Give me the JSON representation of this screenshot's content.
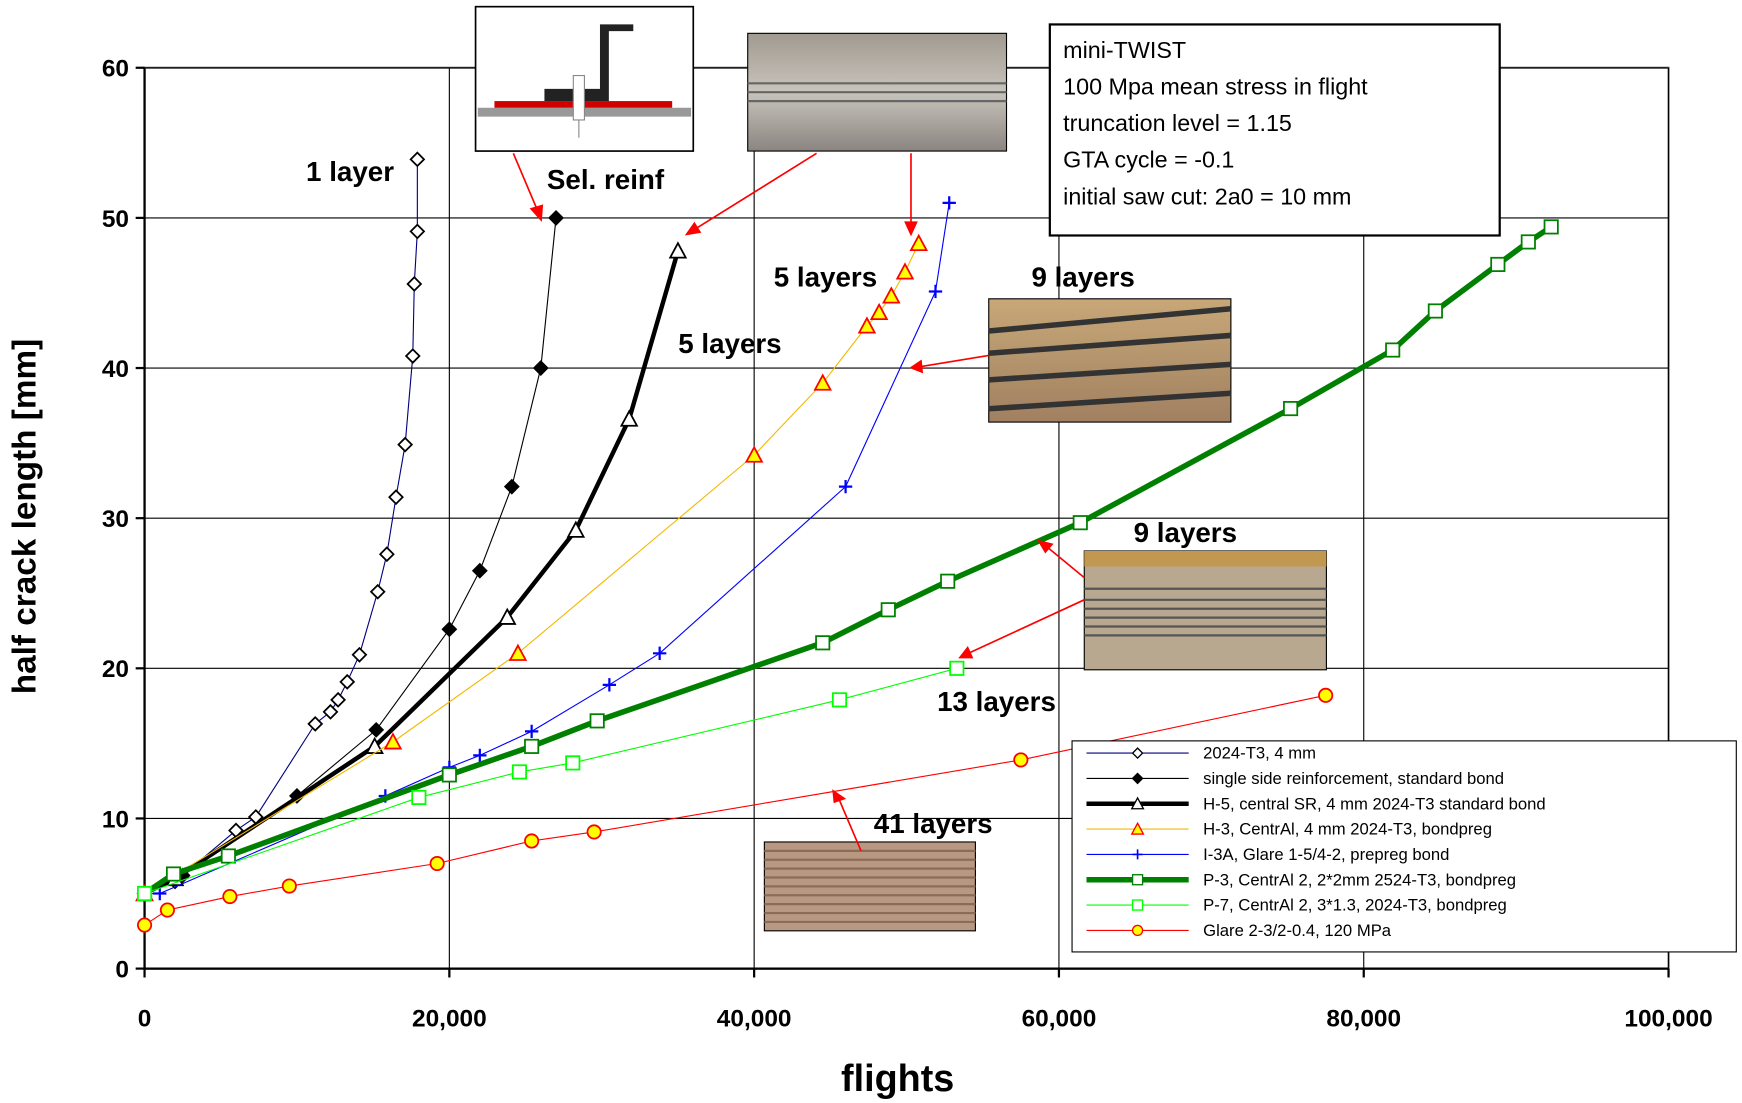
{
  "chart_data": {
    "type": "line",
    "xlabel": "flights",
    "ylabel": "half crack length [mm]",
    "xlim": [
      0,
      100000
    ],
    "ylim": [
      0,
      60
    ],
    "xticks": [
      0,
      {
        "value": 20000,
        "label": "20,000"
      },
      {
        "value": 40000,
        "label": "40,000"
      },
      {
        "value": 60000,
        "label": "60,000"
      },
      {
        "value": 80000,
        "label": "80,000"
      },
      {
        "value": 100000,
        "label": "100,000"
      }
    ],
    "yticks": [
      0,
      10,
      20,
      30,
      40,
      50,
      60
    ],
    "grid": true,
    "series": [
      {
        "name": "2024-T3, 4 mm",
        "color": "#000080",
        "marker": "diamond",
        "marker_stroke": "#000000",
        "marker_fill": "#ffffff",
        "line_width": 1,
        "x": [
          0,
          2000,
          6000,
          7300,
          11200,
          12200,
          12700,
          13300,
          14100,
          15300,
          15900,
          16500,
          17100,
          17600,
          17700,
          17900,
          17900
        ],
        "values": [
          5,
          5.8,
          9.2,
          10.1,
          16.3,
          17.1,
          17.9,
          19.1,
          20.9,
          25.1,
          27.6,
          31.4,
          34.9,
          40.8,
          45.6,
          49.1,
          53.9
        ]
      },
      {
        "name": "single side reinforcement, standard bond",
        "color": "#000000",
        "marker": "diamond",
        "marker_stroke": "#000000",
        "marker_fill": "#000000",
        "line_width": 1,
        "x": [
          0,
          2500,
          10000,
          15200,
          20000,
          22000,
          24100,
          26000,
          27000
        ],
        "values": [
          5,
          6.2,
          11.5,
          15.9,
          22.6,
          26.5,
          32.1,
          40,
          50
        ]
      },
      {
        "name": "H-5, central SR, 4 mm 2024-T3 standard bond",
        "color": "#000000",
        "marker": "triangle",
        "marker_stroke": "#000000",
        "marker_fill": "#ffffff",
        "line_width": 4,
        "x": [
          0,
          2000,
          15100,
          23800,
          28300,
          31800,
          35000
        ],
        "values": [
          5,
          6,
          14.8,
          23.4,
          29.2,
          36.6,
          47.8
        ]
      },
      {
        "name": "H-3, CentrAl, 4 mm 2024-T3, bondpreg",
        "color": "#f5b800",
        "marker": "triangle",
        "marker_stroke": "#ff0000",
        "marker_fill": "#ffff00",
        "line_width": 1,
        "x": [
          0,
          16300,
          24500,
          40000,
          44500,
          47400,
          48200,
          49000,
          49900,
          50800
        ],
        "values": [
          5,
          15.1,
          21,
          34.2,
          39,
          42.8,
          43.7,
          44.8,
          46.4,
          48.3
        ]
      },
      {
        "name": "I-3A, Glare 1-5/4-2, prepreg bond",
        "color": "#0000ff",
        "marker": "plus",
        "marker_stroke": "#0000ff",
        "marker_fill": "#0000ff",
        "line_width": 1,
        "x": [
          0,
          1000,
          15800,
          20000,
          22000,
          25400,
          30500,
          33800,
          46000,
          51900,
          52800
        ],
        "values": [
          5,
          5,
          11.5,
          13.4,
          14.2,
          15.8,
          18.9,
          21,
          32.1,
          45.1,
          51
        ]
      },
      {
        "name": "P-3, CentrAl 2, 2*2mm 2524-T3, bondpreg",
        "color": "#008000",
        "marker": "square",
        "marker_stroke": "#008000",
        "marker_fill": "#ffffff",
        "line_width": 5,
        "x": [
          0,
          1900,
          5500,
          20000,
          25400,
          29700,
          44500,
          48800,
          52700,
          61400,
          75200,
          81900,
          84700,
          88800,
          90800,
          92300
        ],
        "values": [
          5,
          6.3,
          7.5,
          12.9,
          14.8,
          16.5,
          21.7,
          23.9,
          25.8,
          29.7,
          37.3,
          41.2,
          43.8,
          46.9,
          48.4,
          49.4
        ]
      },
      {
        "name": "P-7, CentrAl 2, 3*1.3, 2024-T3, bondpreg",
        "color": "#00ff00",
        "marker": "square",
        "marker_stroke": "#00ff00",
        "marker_fill": "#ffffff",
        "line_width": 1,
        "x": [
          0,
          18000,
          24600,
          28100,
          45600,
          53300
        ],
        "values": [
          5,
          11.4,
          13.1,
          13.7,
          17.9,
          20
        ]
      },
      {
        "name": "Glare 2-3/2-0.4, 120 MPa",
        "color": "#ff0000",
        "marker": "circle",
        "marker_stroke": "#ff0000",
        "marker_fill": "#ffff00",
        "line_width": 1,
        "x": [
          0,
          1500,
          5600,
          9500,
          19200,
          25400,
          29500,
          57500,
          77500
        ],
        "values": [
          2.9,
          3.9,
          4.8,
          5.5,
          7,
          8.5,
          9.1,
          13.9,
          18.2
        ]
      }
    ],
    "annotations": [
      "1 layer",
      "Sel. reinf",
      "5 layers",
      "5 layers",
      "9 layers",
      "9 layers",
      "13 layers",
      "41 layers"
    ],
    "info_box": [
      "mini-TWIST",
      "100 Mpa mean stress in flight",
      "truncation level = 1.15",
      "GTA cycle = -0.1",
      "initial saw cut: 2a0 = 10 mm"
    ]
  }
}
